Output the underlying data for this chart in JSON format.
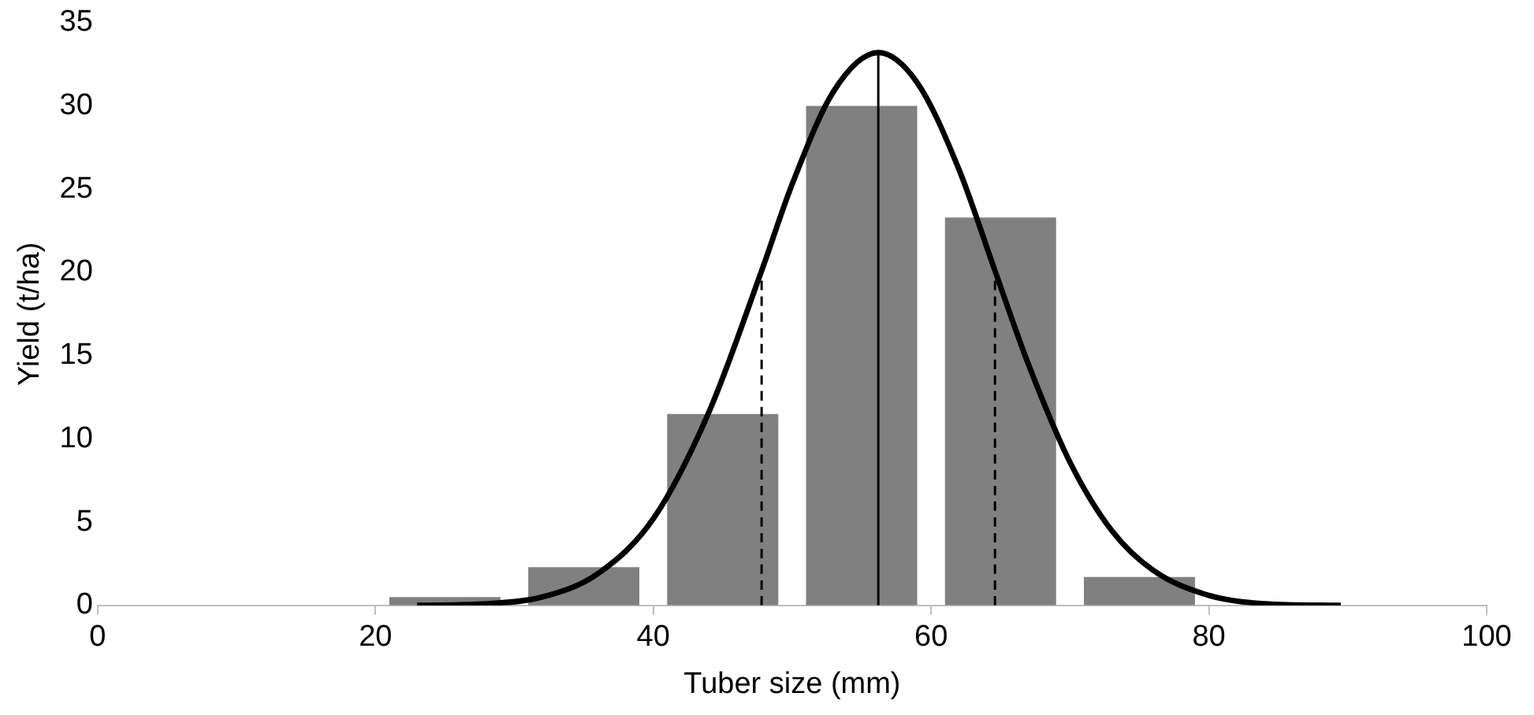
{
  "chart_data": {
    "type": "bar",
    "xlabel": "Tuber size (mm)",
    "ylabel": "Yield (t/ha)",
    "xlim": [
      0,
      100
    ],
    "xticks": [
      0,
      20,
      40,
      60,
      80,
      100
    ],
    "ylim": [
      0,
      35
    ],
    "yticks": [
      0,
      5,
      10,
      15,
      20,
      25,
      30,
      35
    ],
    "grid": false,
    "legend": false,
    "marker": "none",
    "series": [
      {
        "color": "#808080",
        "x": [
          25,
          35,
          45,
          55,
          65,
          75
        ],
        "values": [
          0.5,
          2.3,
          11.5,
          30.0,
          23.3,
          1.7
        ]
      },
      {
        "type": "line",
        "color": "#000000",
        "line_style": "solid",
        "x": [
          23,
          28,
          32,
          36,
          40,
          44,
          47.8,
          50,
          53,
          56.2,
          59,
          62,
          64.6,
          67,
          70,
          73,
          76,
          80,
          84,
          89.5
        ],
        "values": [
          0,
          0.1,
          0.5,
          1.9,
          5.2,
          11.6,
          20.1,
          25.3,
          30.9,
          33.2,
          31.4,
          26.2,
          20.1,
          14.5,
          8.6,
          4.5,
          2.1,
          0.6,
          0.1,
          0
        ]
      },
      {
        "type": "line",
        "color": "#000000",
        "line_style": "dashed",
        "x": [
          47.8,
          47.8
        ],
        "values": [
          0,
          20.1
        ]
      },
      {
        "type": "line",
        "color": "#000000",
        "line_style": "dashed",
        "x": [
          64.6,
          64.6
        ],
        "values": [
          0,
          20.1
        ]
      },
      {
        "type": "line",
        "color": "#000000",
        "line_style": "solid",
        "x": [
          56.2,
          56.2
        ],
        "values": [
          0,
          33.2
        ]
      }
    ]
  }
}
